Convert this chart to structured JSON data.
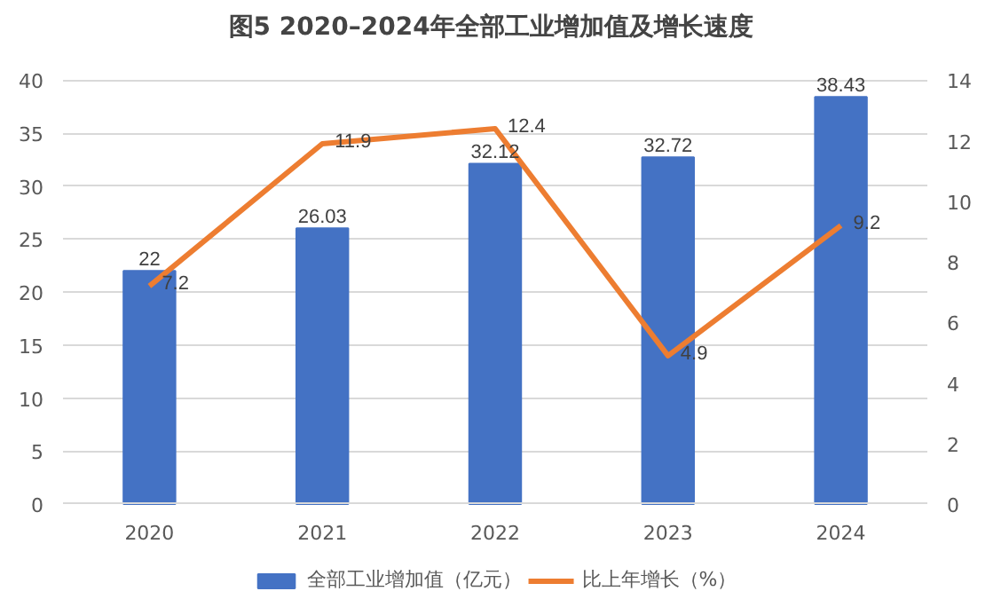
{
  "chart_data": {
    "type": "bar",
    "title": "图5  2020–2024年全部工业增加值及增长速度",
    "categories": [
      "2020",
      "2021",
      "2022",
      "2023",
      "2024"
    ],
    "series": [
      {
        "name": "全部工业增加值（亿元）",
        "color": "#4472c4",
        "values": [
          22,
          26.03,
          32.12,
          32.72,
          38.43
        ]
      },
      {
        "name": "比上年增长（%）",
        "type": "line",
        "axis": "y2",
        "color": "#ed7d31",
        "values": [
          7.2,
          11.9,
          12.4,
          4.9,
          9.2
        ]
      }
    ],
    "ylim": [
      0,
      40
    ],
    "yticks": [
      0,
      5,
      10,
      15,
      20,
      25,
      30,
      35,
      40
    ],
    "y2lim": [
      0,
      14
    ],
    "y2ticks": [
      0,
      2,
      4,
      6,
      8,
      10,
      12,
      14
    ],
    "data_labels": true,
    "grid": "y",
    "legend": "bottom",
    "marker": "none",
    "line_style": "solid"
  }
}
